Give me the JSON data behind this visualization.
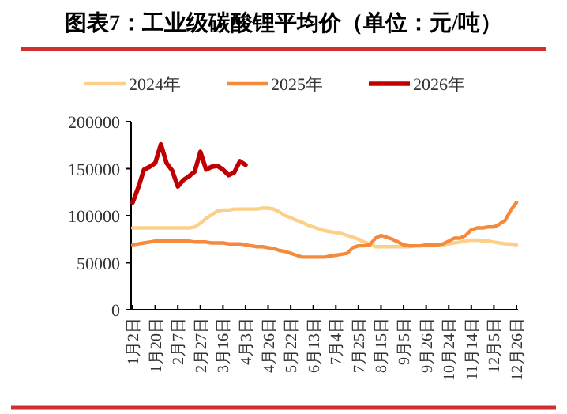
{
  "chart_data": {
    "type": "line",
    "title": "图表7：工业级碳酸锂平均价（单位：元/吨）",
    "categories": [
      "1月2日",
      null,
      null,
      null,
      "1月20日",
      null,
      null,
      null,
      "2月7日",
      null,
      null,
      null,
      "2月27日",
      null,
      null,
      null,
      "3月16日",
      null,
      null,
      null,
      "4月3日",
      null,
      null,
      null,
      "4月26日",
      null,
      null,
      null,
      "5月22日",
      null,
      null,
      null,
      "6月13日",
      null,
      null,
      null,
      "7月4日",
      null,
      null,
      null,
      "7月25日",
      null,
      null,
      null,
      "8月15日",
      null,
      null,
      null,
      "9月5日",
      null,
      null,
      null,
      "9月26日",
      null,
      null,
      null,
      "10月24日",
      null,
      null,
      null,
      "11月14日",
      null,
      null,
      null,
      "12月5日",
      null,
      null,
      null,
      "12月26日"
    ],
    "ylim": [
      0,
      200000
    ],
    "yticks": [
      0,
      50000,
      100000,
      150000,
      200000
    ],
    "legend": "top",
    "line_style": "solid",
    "series": [
      {
        "name": "2024年",
        "color": "#fdd08a",
        "values": [
          87000,
          87000,
          87000,
          87000,
          87000,
          87000,
          87000,
          87000,
          87000,
          87000,
          87000,
          88000,
          92000,
          97000,
          101000,
          105000,
          106000,
          106000,
          107000,
          107000,
          107000,
          107000,
          107000,
          108000,
          108000,
          107000,
          104000,
          100000,
          98000,
          95000,
          93000,
          90000,
          88000,
          86000,
          84000,
          83000,
          82000,
          81000,
          79000,
          77000,
          75000,
          72000,
          70000,
          67000,
          67000,
          67000,
          67000,
          67000,
          67000,
          67000,
          68000,
          68000,
          68000,
          68000,
          69000,
          69000,
          70000,
          71000,
          72000,
          73000,
          74000,
          74000,
          73000,
          73000,
          72000,
          71000,
          70000,
          70000,
          69000
        ]
      },
      {
        "name": "2025年",
        "color": "#f5893c",
        "values": [
          69000,
          70000,
          71000,
          72000,
          73000,
          73000,
          73000,
          73000,
          73000,
          73000,
          73000,
          72000,
          72000,
          72000,
          71000,
          71000,
          71000,
          70000,
          70000,
          70000,
          69000,
          68000,
          67000,
          67000,
          66000,
          65000,
          63000,
          62000,
          60000,
          58000,
          56000,
          56000,
          56000,
          56000,
          56000,
          57000,
          58000,
          59000,
          60000,
          66000,
          68000,
          68000,
          69000,
          76000,
          79000,
          77000,
          75000,
          72000,
          69000,
          68000,
          68000,
          68000,
          69000,
          69000,
          69000,
          70000,
          73000,
          76000,
          76000,
          79000,
          85000,
          87000,
          87000,
          88000,
          88000,
          91000,
          95000,
          106000,
          114000
        ]
      },
      {
        "name": "2026年",
        "color": "#c00000",
        "values": [
          114000,
          130000,
          149000,
          152000,
          156000,
          176000,
          156000,
          148000,
          131000,
          138000,
          142000,
          147000,
          168000,
          149000,
          152000,
          153000,
          149000,
          143000,
          146000,
          158000,
          154000,
          null,
          null,
          null,
          null,
          null,
          null,
          null,
          null,
          null,
          null,
          null,
          null,
          null,
          null,
          null,
          null,
          null,
          null,
          null,
          null,
          null,
          null,
          null,
          null,
          null,
          null,
          null,
          null,
          null,
          null,
          null,
          null,
          null,
          null,
          null,
          null,
          null,
          null,
          null,
          null,
          null,
          null,
          null,
          null,
          null,
          null,
          null,
          null
        ]
      }
    ]
  }
}
